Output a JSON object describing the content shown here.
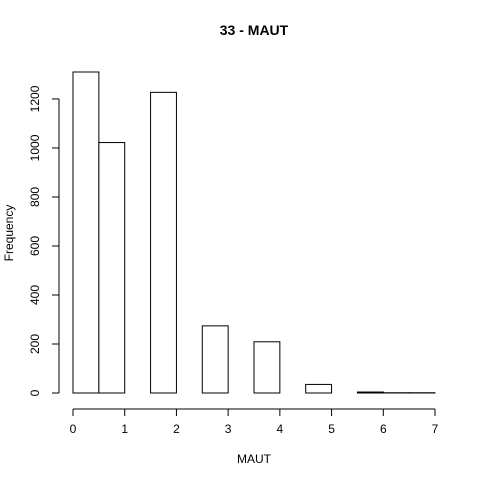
{
  "chart_data": {
    "type": "bar",
    "title": "33 - MAUT",
    "xlabel": "MAUT",
    "ylabel": "Frequency",
    "bin_edges": [
      0,
      0.5,
      1,
      1.5,
      2,
      2.5,
      3,
      3.5,
      4,
      4.5,
      5,
      5.5,
      6,
      6.5,
      7
    ],
    "values": [
      1310,
      1022,
      0,
      1227,
      0,
      274,
      0,
      209,
      0,
      35,
      0,
      4,
      1,
      1
    ],
    "xlim": [
      0,
      7
    ],
    "ylim": [
      0,
      1310
    ],
    "xticks": [
      "0",
      "1",
      "2",
      "3",
      "4",
      "5",
      "6",
      "7"
    ],
    "yticks": [
      "0",
      "200",
      "400",
      "600",
      "800",
      "1000",
      "1200"
    ],
    "grid": false,
    "legend": "none"
  }
}
